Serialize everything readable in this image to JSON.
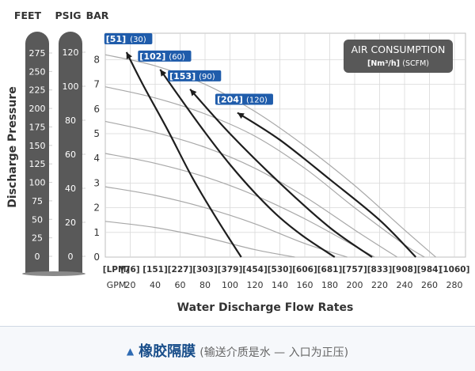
{
  "chart_data": {
    "type": "line",
    "xlabel": "Water Discharge Flow Rates",
    "header_units": [
      "FEET",
      "PSIG",
      "BAR"
    ],
    "ylabel": "Discharge Pressure",
    "bar_ticks": [
      "0",
      "1",
      "2",
      "3",
      "4",
      "5",
      "6",
      "7",
      "8"
    ],
    "feet_ticks": [
      "275",
      "250",
      "225",
      "200",
      "175",
      "150",
      "125",
      "100",
      "75",
      "50",
      "25",
      "0"
    ],
    "psig_ticks": [
      "120",
      "100",
      "80",
      "60",
      "40",
      "20",
      "0"
    ],
    "lpm_ticks": [
      "[LPM]",
      "[76]",
      "[151]",
      "[227]",
      "[303]",
      "[379]",
      "[454]",
      "[530]",
      "[606]",
      "[681]",
      "[757]",
      "[833]",
      "[908]",
      "[984]",
      "[1060]"
    ],
    "gpm_ticks": [
      "GPM",
      "20",
      "40",
      "60",
      "80",
      "100",
      "120",
      "140",
      "160",
      "180",
      "200",
      "220",
      "240",
      "260",
      "280"
    ],
    "xlim_gpm": [
      0,
      280
    ],
    "ylim_bar": [
      0,
      8.6
    ],
    "legend": {
      "title": "AIR CONSUMPTION",
      "units_bold": "[Nm³/h]",
      "units_light": "(SCFM)"
    },
    "series": [
      {
        "name_bold": "[51]",
        "name_light": "(30)",
        "x": [
          17,
          30,
          50,
          70,
          90,
          109
        ],
        "y": [
          8.3,
          7.0,
          5.15,
          3.2,
          1.5,
          0
        ]
      },
      {
        "name_bold": "[102]",
        "name_light": "(60)",
        "x": [
          44,
          60,
          80,
          100,
          120,
          140,
          160,
          184
        ],
        "y": [
          7.6,
          6.45,
          5.05,
          3.75,
          2.6,
          1.6,
          0.8,
          0
        ]
      },
      {
        "name_bold": "[153]",
        "name_light": "(90)",
        "x": [
          68,
          100,
          140,
          180,
          214
        ],
        "y": [
          6.8,
          5.0,
          3.0,
          1.2,
          0
        ]
      },
      {
        "name_bold": "[204]",
        "name_light": "(120)",
        "x": [
          106,
          140,
          180,
          220,
          249
        ],
        "y": [
          5.85,
          4.75,
          3.15,
          1.5,
          0
        ]
      }
    ],
    "pressure_curves": [
      {
        "x": [
          0,
          40,
          80,
          120,
          160,
          200,
          240,
          265
        ],
        "y": [
          8.2,
          7.75,
          7.0,
          5.9,
          4.5,
          2.9,
          1.1,
          0
        ]
      },
      {
        "x": [
          0,
          40,
          80,
          120,
          160,
          200,
          240,
          256
        ],
        "y": [
          6.9,
          6.45,
          5.8,
          4.9,
          3.6,
          2.0,
          0.5,
          0
        ]
      },
      {
        "x": [
          0,
          40,
          80,
          120,
          160,
          200,
          234
        ],
        "y": [
          5.5,
          5.05,
          4.45,
          3.6,
          2.45,
          1.1,
          0
        ]
      },
      {
        "x": [
          0,
          40,
          80,
          120,
          160,
          200,
          216
        ],
        "y": [
          4.2,
          3.8,
          3.25,
          2.5,
          1.55,
          0.45,
          0
        ]
      },
      {
        "x": [
          0,
          40,
          80,
          120,
          160,
          194
        ],
        "y": [
          2.85,
          2.5,
          2.0,
          1.35,
          0.55,
          0
        ]
      },
      {
        "x": [
          0,
          40,
          80,
          120,
          152
        ],
        "y": [
          1.45,
          1.2,
          0.8,
          0.3,
          0
        ]
      }
    ],
    "colors": {
      "series_line": "#1e1e1e",
      "pressure_curve": "#a8a8a8",
      "grid": "#d9d9d9",
      "label_bg": "#1f5cab",
      "legend_bg": "#585858",
      "column_bg": "#595959"
    }
  },
  "caption": {
    "icon": "triangle-up-icon",
    "main": "橡胶隔膜",
    "sub": "(输送介质是水 — 入口为正压)"
  }
}
